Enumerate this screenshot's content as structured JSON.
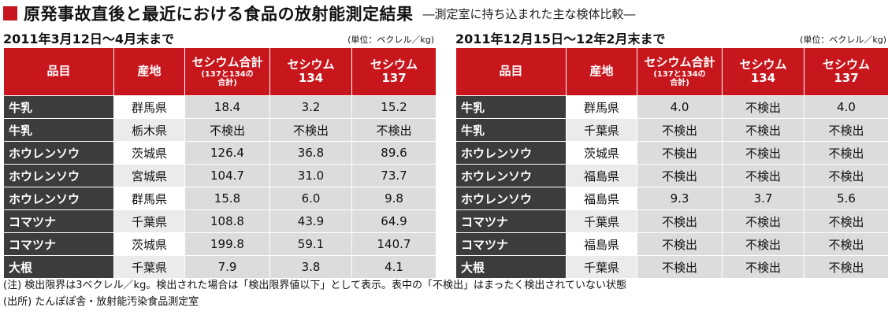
{
  "header": {
    "title": "原発事故直後と最近における食品の放射能測定結果",
    "subtitle": "―測定室に持ち込まれた主な検体比較―"
  },
  "columns": {
    "item": "品目",
    "origin": "産地",
    "total_main": "セシウム合計",
    "total_sub1": "(137と134の",
    "total_sub2": "合計)",
    "cs134_a": "セシウム",
    "cs134_b": "134",
    "cs137_a": "セシウム",
    "cs137_b": "137"
  },
  "left": {
    "period": "2011年3月12日～4月末まで",
    "unit": "(単位：ベクレル／kg)",
    "rows": [
      {
        "item": "牛乳",
        "origin": "群馬県",
        "total": "18.4",
        "cs134": "3.2",
        "cs137": "15.2"
      },
      {
        "item": "牛乳",
        "origin": "栃木県",
        "total": "不検出",
        "cs134": "不検出",
        "cs137": "不検出"
      },
      {
        "item": "ホウレンソウ",
        "origin": "茨城県",
        "total": "126.4",
        "cs134": "36.8",
        "cs137": "89.6"
      },
      {
        "item": "ホウレンソウ",
        "origin": "宮城県",
        "total": "104.7",
        "cs134": "31.0",
        "cs137": "73.7"
      },
      {
        "item": "ホウレンソウ",
        "origin": "群馬県",
        "total": "15.8",
        "cs134": "6.0",
        "cs137": "9.8"
      },
      {
        "item": "コマツナ",
        "origin": "千葉県",
        "total": "108.8",
        "cs134": "43.9",
        "cs137": "64.9"
      },
      {
        "item": "コマツナ",
        "origin": "茨城県",
        "total": "199.8",
        "cs134": "59.1",
        "cs137": "140.7"
      },
      {
        "item": "大根",
        "origin": "千葉県",
        "total": "7.9",
        "cs134": "3.8",
        "cs137": "4.1"
      }
    ]
  },
  "right": {
    "period": "2011年12月15日～12年2月末まで",
    "unit": "(単位：ベクレル／kg)",
    "rows": [
      {
        "item": "牛乳",
        "origin": "群馬県",
        "total": "4.0",
        "cs134": "不検出",
        "cs137": "4.0"
      },
      {
        "item": "牛乳",
        "origin": "千葉県",
        "total": "不検出",
        "cs134": "不検出",
        "cs137": "不検出"
      },
      {
        "item": "ホウレンソウ",
        "origin": "茨城県",
        "total": "不検出",
        "cs134": "不検出",
        "cs137": "不検出"
      },
      {
        "item": "ホウレンソウ",
        "origin": "福島県",
        "total": "不検出",
        "cs134": "不検出",
        "cs137": "不検出"
      },
      {
        "item": "ホウレンソウ",
        "origin": "福島県",
        "total": "9.3",
        "cs134": "3.7",
        "cs137": "5.6"
      },
      {
        "item": "コマツナ",
        "origin": "千葉県",
        "total": "不検出",
        "cs134": "不検出",
        "cs137": "不検出"
      },
      {
        "item": "コマツナ",
        "origin": "福島県",
        "total": "不検出",
        "cs134": "不検出",
        "cs137": "不検出"
      },
      {
        "item": "大根",
        "origin": "千葉県",
        "total": "不検出",
        "cs134": "不検出",
        "cs137": "不検出"
      }
    ]
  },
  "notes": {
    "note": "(注) 検出限界は3ベクレル／kg。検出された場合は「検出限界値以下」として表示。表中の「不検出」はまったく検出されていない状態",
    "source": "(出所) たんぽぽ舎・放射能汚染食品測定室"
  }
}
